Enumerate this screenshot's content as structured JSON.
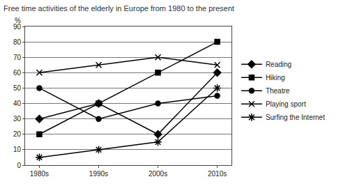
{
  "chart_data": {
    "type": "line",
    "title": "Free time activities of the elderly in Europe from 1980 to the present",
    "y_label": "%",
    "categories": [
      "1980s",
      "1990s",
      "2000s",
      "2010s"
    ],
    "series": [
      {
        "name": "Reading",
        "color": "#000000",
        "marker": "diamond",
        "values": [
          30,
          40,
          20,
          60
        ]
      },
      {
        "name": "Hiking",
        "color": "#000000",
        "marker": "square",
        "values": [
          20,
          40,
          60,
          80
        ]
      },
      {
        "name": "Theatre",
        "color": "#000000",
        "marker": "circle",
        "values": [
          50,
          30,
          40,
          45
        ]
      },
      {
        "name": "Playing sport",
        "color": "#000000",
        "marker": "x",
        "values": [
          60,
          65,
          70,
          65
        ]
      },
      {
        "name": "Surfing the Internet",
        "color": "#000000",
        "marker": "asterisk",
        "values": [
          5,
          10,
          15,
          50
        ]
      }
    ],
    "ylim": [
      0,
      90
    ],
    "yticks": [
      0,
      10,
      20,
      30,
      40,
      50,
      60,
      70,
      80,
      90
    ],
    "grid": true,
    "legend": "right"
  }
}
